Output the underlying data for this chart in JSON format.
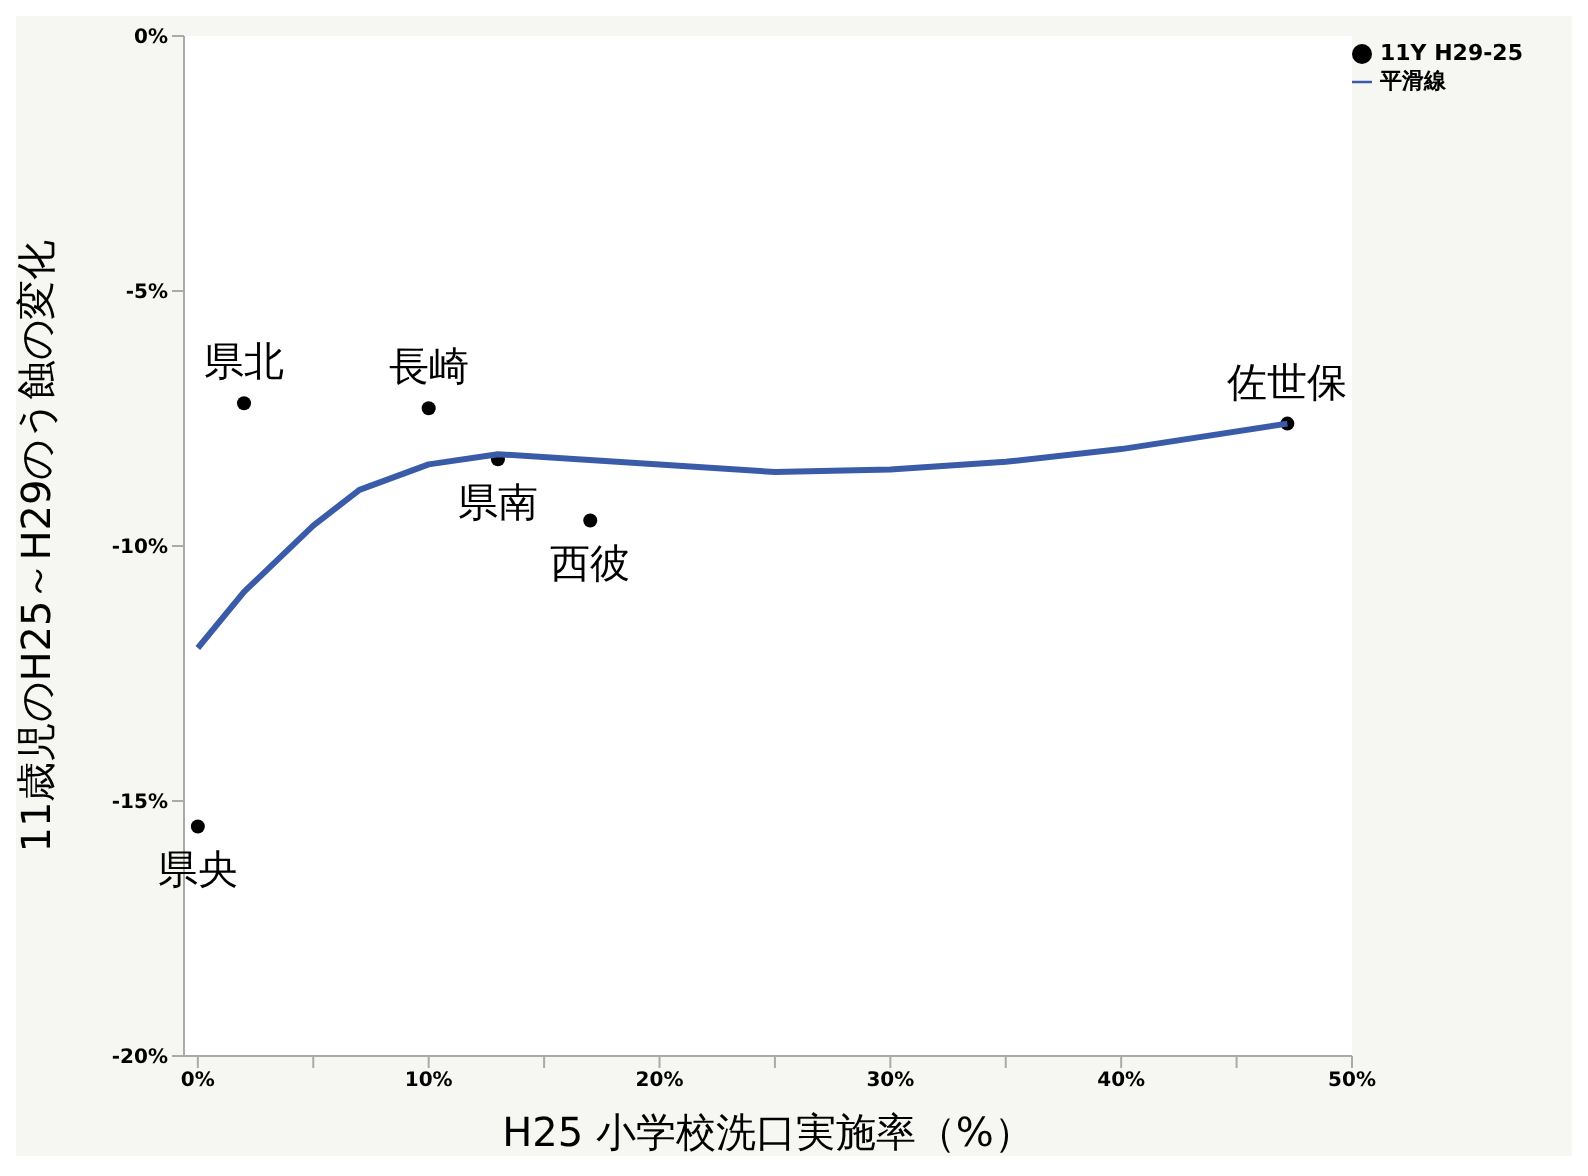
{
  "chart_data": {
    "type": "scatter",
    "xlabel": "H25 小学校洗口実施率（%）",
    "ylabel": "11歳児のH25～H29のう蝕の変化",
    "xlim": [
      -0.6,
      50
    ],
    "xticks": [
      {
        "value": 0,
        "label": "0%"
      },
      {
        "value": 5,
        "label": null
      },
      {
        "value": 10,
        "label": "10%"
      },
      {
        "value": 15,
        "label": null
      },
      {
        "value": 20,
        "label": "20%"
      },
      {
        "value": 25,
        "label": null
      },
      {
        "value": 30,
        "label": "30%"
      },
      {
        "value": 35,
        "label": null
      },
      {
        "value": 40,
        "label": "40%"
      },
      {
        "value": 45,
        "label": null
      },
      {
        "value": 50,
        "label": "50%"
      }
    ],
    "ylim": [
      -20,
      0
    ],
    "yticks": [
      {
        "value": 0,
        "label": "0%"
      },
      {
        "value": -5,
        "label": "-5%"
      },
      {
        "value": -10,
        "label": "-10%"
      },
      {
        "value": -15,
        "label": "-15%"
      },
      {
        "value": -20,
        "label": "-20%"
      }
    ],
    "series": [
      {
        "name": "11Y H29-25",
        "color": "#000000",
        "marker": "circle",
        "x": [
          2.0,
          10.0,
          13.0,
          17.0,
          47.2,
          0
        ],
        "values": [
          -7.2,
          -7.3,
          -8.3,
          -9.5,
          -7.6,
          -15.5
        ]
      },
      {
        "name": "平滑線",
        "type": "line",
        "color": "#3a5ba8",
        "marker": "none",
        "line_style": "solid",
        "x": [
          0,
          2,
          5,
          7,
          10,
          13,
          20,
          25,
          30,
          35,
          40,
          47.2
        ],
        "values": [
          -12.0,
          -10.9,
          -9.6,
          -8.9,
          -8.4,
          -8.2,
          -8.4,
          -8.55,
          -8.5,
          -8.35,
          -8.1,
          -7.6
        ]
      }
    ],
    "annotations": [
      {
        "text": "県北",
        "x": 2.0,
        "y": -7.2
      },
      {
        "text": "長崎",
        "x": 10.0,
        "y": -7.3
      },
      {
        "text": "県南",
        "x": 13.0,
        "y": -8.3
      },
      {
        "text": "西彼",
        "x": 17.0,
        "y": -9.5
      },
      {
        "text": "佐世保",
        "x": 47.2,
        "y": -7.6
      },
      {
        "text": "県央",
        "x": 0,
        "y": -15.5
      }
    ],
    "grid": false,
    "legend": "top right"
  }
}
